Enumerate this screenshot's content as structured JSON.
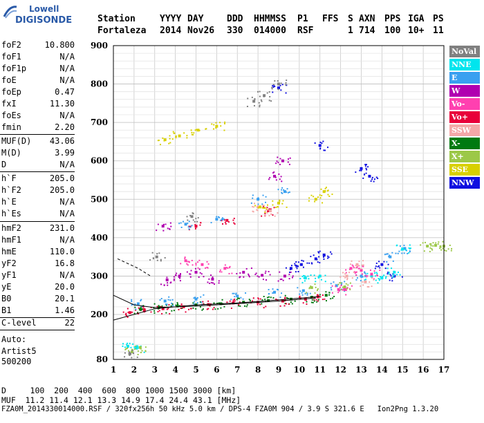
{
  "logo": {
    "top": "Lowell",
    "bottom": "DIGISONDE"
  },
  "header": {
    "labels": [
      "Station",
      "YYYY",
      "DAY",
      "DDD",
      "HHMMSS",
      "P1",
      "FFS",
      "S",
      "AXN",
      "PPS",
      "IGA",
      "PS"
    ],
    "values": [
      "Fortaleza",
      "2014",
      "Nov26",
      "330",
      "014000",
      "RSF",
      "1",
      "714",
      "100",
      "10+",
      "11"
    ]
  },
  "params_group1": [
    {
      "key": "foF2",
      "value": "10.800"
    },
    {
      "key": "foF1",
      "value": "N/A"
    },
    {
      "key": "foF1p",
      "value": "N/A"
    },
    {
      "key": "foE",
      "value": "N/A"
    },
    {
      "key": "foEp",
      "value": "0.47"
    },
    {
      "key": "fxI",
      "value": "11.30"
    },
    {
      "key": "foEs",
      "value": "N/A"
    },
    {
      "key": "fmin",
      "value": "2.20"
    }
  ],
  "params_group2": [
    {
      "key": "MUF(D)",
      "value": "43.06"
    },
    {
      "key": "M(D)",
      "value": "3.99"
    },
    {
      "key": "D",
      "value": "N/A"
    }
  ],
  "params_group3": [
    {
      "key": "h`F",
      "value": "205.0"
    },
    {
      "key": "h`F2",
      "value": "205.0"
    },
    {
      "key": "h`E",
      "value": "N/A"
    },
    {
      "key": "h`Es",
      "value": "N/A"
    }
  ],
  "params_group4": [
    {
      "key": "hmF2",
      "value": "231.0"
    },
    {
      "key": "hmF1",
      "value": "N/A"
    },
    {
      "key": "hmE",
      "value": "110.0"
    },
    {
      "key": "yF2",
      "value": "16.8"
    },
    {
      "key": "yF1",
      "value": "N/A"
    },
    {
      "key": "yE",
      "value": "20.0"
    },
    {
      "key": "B0",
      "value": "20.1"
    },
    {
      "key": "B1",
      "value": "1.46"
    }
  ],
  "params_group5": [
    {
      "key": "C-level",
      "value": "22"
    }
  ],
  "autoscale": {
    "line1": "Auto:",
    "line2": "Artist5",
    "line3": "500200"
  },
  "legend": [
    {
      "label": "NoVal",
      "color": "#808080"
    },
    {
      "label": "NNE",
      "color": "#00e5ee"
    },
    {
      "label": "E",
      "color": "#3aa0f0"
    },
    {
      "label": "W",
      "color": "#b000b0"
    },
    {
      "label": "Vo-",
      "color": "#ff40b0"
    },
    {
      "label": "Vo+",
      "color": "#e8003a"
    },
    {
      "label": "SSW",
      "color": "#f4a8a8"
    },
    {
      "label": "X-",
      "color": "#007a10"
    },
    {
      "label": "X+",
      "color": "#9cc848"
    },
    {
      "label": "SSE",
      "color": "#d8d000"
    },
    {
      "label": "NNW",
      "color": "#1010e0"
    }
  ],
  "bottom": {
    "d_line": "D     100  200  400  600  800 1000 1500 3000 [km]",
    "muf_line": "MUF  11.2 11.4 12.1 13.3 14.9 17.4 24.4 43.1 [MHz]",
    "file_line": "FZA0M_2014330014000.RSF / 320fx256h 50 kHz 5.0 km / DPS-4 FZA0M 904 / 3.9 S 321.6 E   Ion2Png 1.3.20"
  },
  "chart_data": {
    "type": "scatter",
    "xlabel": "",
    "ylabel": "",
    "xlim": [
      1,
      17
    ],
    "ylim": [
      80,
      900
    ],
    "x_ticks": [
      "1",
      "2",
      "3",
      "4",
      "5",
      "6",
      "7",
      "8",
      "9",
      "10",
      "11",
      "12",
      "13",
      "14",
      "15",
      "16",
      "17"
    ],
    "y_ticks": [
      "80",
      "200",
      "300",
      "400",
      "500",
      "600",
      "700",
      "800",
      "900"
    ],
    "grid": true,
    "series": [
      {
        "name": "X-",
        "color": "#007a10",
        "points": [
          [
            2.3,
            214
          ],
          [
            3.2,
            218
          ],
          [
            4.1,
            222
          ],
          [
            5.0,
            225
          ],
          [
            6.2,
            228
          ],
          [
            7.3,
            232
          ],
          [
            8.5,
            236
          ],
          [
            9.6,
            240
          ],
          [
            10.6,
            245
          ],
          [
            11.3,
            250
          ]
        ]
      },
      {
        "name": "Vo+",
        "color": "#e8003a",
        "points": [
          [
            1.8,
            205
          ],
          [
            2.5,
            210
          ],
          [
            3.4,
            215
          ],
          [
            4.4,
            220
          ],
          [
            5.6,
            226
          ],
          [
            6.8,
            230
          ],
          [
            8.0,
            232
          ],
          [
            9.2,
            235
          ],
          [
            10.3,
            240
          ],
          [
            10.9,
            246
          ],
          [
            5.0,
            430
          ],
          [
            6.5,
            445
          ],
          [
            8.5,
            470
          ]
        ]
      },
      {
        "name": "E",
        "color": "#3aa0f0",
        "points": [
          [
            2.2,
            228
          ],
          [
            3.5,
            235
          ],
          [
            5.0,
            240
          ],
          [
            7.0,
            248
          ],
          [
            8.8,
            258
          ],
          [
            10.2,
            262
          ],
          [
            11.8,
            275
          ],
          [
            13.0,
            300
          ],
          [
            14.4,
            350
          ],
          [
            15.1,
            372
          ],
          [
            4.5,
            435
          ],
          [
            6.0,
            448
          ],
          [
            8.0,
            500
          ],
          [
            9.3,
            520
          ]
        ]
      },
      {
        "name": "W",
        "color": "#b000b0",
        "points": [
          [
            3.6,
            290
          ],
          [
            4.2,
            300
          ],
          [
            5.0,
            310
          ],
          [
            5.8,
            292
          ],
          [
            7.3,
            310
          ],
          [
            8.2,
            302
          ],
          [
            9.3,
            300
          ],
          [
            8.8,
            560
          ],
          [
            9.2,
            600
          ],
          [
            3.4,
            430
          ]
        ]
      },
      {
        "name": "NNW",
        "color": "#1010e0",
        "points": [
          [
            9.6,
            320
          ],
          [
            10.1,
            330
          ],
          [
            10.8,
            345
          ],
          [
            11.2,
            355
          ],
          [
            11.0,
            640
          ],
          [
            13.0,
            580
          ],
          [
            13.4,
            560
          ],
          [
            14.0,
            330
          ],
          [
            14.6,
            300
          ],
          [
            9.0,
            790
          ]
        ]
      },
      {
        "name": "NNE",
        "color": "#00e5ee",
        "points": [
          [
            13.5,
            300
          ],
          [
            14.0,
            295
          ],
          [
            14.6,
            310
          ],
          [
            15.0,
            370
          ],
          [
            10.3,
            295
          ],
          [
            11.0,
            300
          ],
          [
            1.7,
            115
          ],
          [
            2.1,
            112
          ]
        ]
      },
      {
        "name": "Vo-",
        "color": "#ff40b0",
        "points": [
          [
            12.5,
            320
          ],
          [
            13.0,
            315
          ],
          [
            13.5,
            305
          ],
          [
            12.2,
            265
          ],
          [
            11.9,
            265
          ],
          [
            4.5,
            340
          ],
          [
            5.3,
            330
          ],
          [
            6.4,
            320
          ]
        ]
      },
      {
        "name": "SSW",
        "color": "#f4a8a8",
        "points": [
          [
            12.3,
            300
          ],
          [
            12.8,
            330
          ],
          [
            13.2,
            285
          ],
          [
            8.0,
            480
          ],
          [
            8.6,
            470
          ]
        ]
      },
      {
        "name": "X+",
        "color": "#9cc848",
        "points": [
          [
            16.2,
            378
          ],
          [
            16.6,
            380
          ],
          [
            17.0,
            378
          ],
          [
            12.2,
            272
          ],
          [
            10.6,
            270
          ],
          [
            1.9,
            100
          ],
          [
            2.3,
            112
          ]
        ]
      },
      {
        "name": "SSE",
        "color": "#d8d000",
        "points": [
          [
            3.5,
            655
          ],
          [
            4.2,
            665
          ],
          [
            5.1,
            680
          ],
          [
            6.0,
            690
          ],
          [
            10.8,
            500
          ],
          [
            11.2,
            520
          ],
          [
            9.0,
            490
          ],
          [
            8.1,
            480
          ]
        ]
      },
      {
        "name": "NoVal",
        "color": "#808080",
        "points": [
          [
            1.8,
            95
          ],
          [
            7.8,
            755
          ],
          [
            8.3,
            770
          ],
          [
            9.0,
            800
          ],
          [
            4.8,
            455
          ],
          [
            3.1,
            350
          ]
        ]
      }
    ],
    "profile_lines": [
      {
        "points": [
          [
            1.0,
            185
          ],
          [
            3.0,
            215
          ],
          [
            5.0,
            225
          ],
          [
            7.0,
            230
          ],
          [
            9.0,
            238
          ],
          [
            11.0,
            247
          ]
        ]
      },
      {
        "points": [
          [
            1.0,
            250
          ],
          [
            2.0,
            225
          ],
          [
            3.0,
            218
          ],
          [
            5.0,
            222
          ],
          [
            7.0,
            228
          ],
          [
            9.0,
            235
          ],
          [
            10.8,
            243
          ]
        ]
      },
      {
        "points": [
          [
            1.2,
            345
          ],
          [
            2.2,
            320
          ],
          [
            2.8,
            300
          ]
        ]
      }
    ]
  }
}
